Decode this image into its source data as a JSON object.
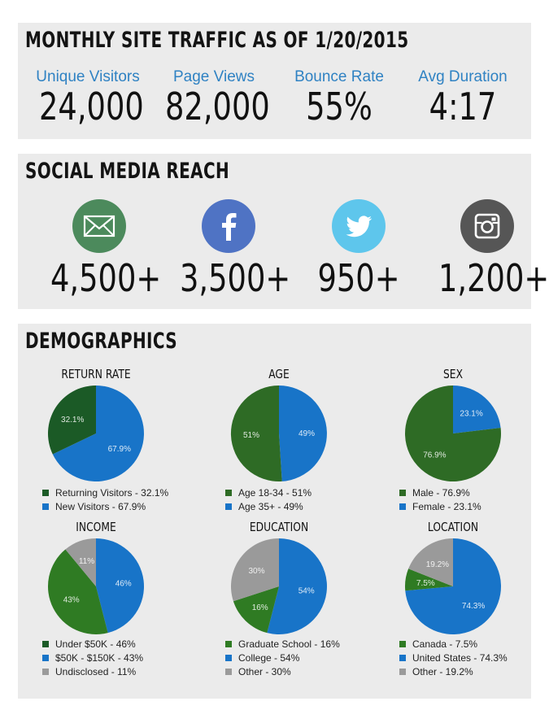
{
  "traffic": {
    "title": "MONTHLY SITE TRAFFIC AS OF 1/20/2015",
    "stats": [
      {
        "label": "Unique Visitors",
        "value": "24,000"
      },
      {
        "label": "Page Views",
        "value": "82,000"
      },
      {
        "label": "Bounce Rate",
        "value": "55%"
      },
      {
        "label": "Avg Duration",
        "value": "4:17"
      }
    ]
  },
  "social": {
    "title": "SOCIAL MEDIA REACH",
    "items": [
      {
        "icon": "envelope-icon",
        "color": "#4c8a5c",
        "count": "4,500+"
      },
      {
        "icon": "facebook-icon",
        "color": "#4f73c4",
        "count": "3,500+"
      },
      {
        "icon": "twitter-icon",
        "color": "#5ec6ec",
        "count": "950+"
      },
      {
        "icon": "instagram-icon",
        "color": "#565656",
        "count": "1,200+"
      }
    ]
  },
  "demographics": {
    "title": "DEMOGRAPHICS"
  },
  "colors": {
    "blue": "#1874c8",
    "light_green": "#2f7b23",
    "dark_green": "#1b5a26",
    "gray": "#9a9a9a"
  },
  "chart_data": [
    {
      "type": "pie",
      "title": "RETURN RATE",
      "slices": [
        {
          "pie_label": "67.9%",
          "value": 67.9,
          "color": "#1874c8",
          "legend": "New Visitors - 67.9%"
        },
        {
          "pie_label": "32.1%",
          "value": 32.1,
          "color": "#1b5a26",
          "legend": "Returning Visitors - 32.1%"
        }
      ],
      "legend_order": [
        1,
        0
      ]
    },
    {
      "type": "pie",
      "title": "AGE",
      "slices": [
        {
          "pie_label": "49%",
          "value": 49,
          "color": "#1874c8",
          "legend": "Age 35+ - 49%"
        },
        {
          "pie_label": "51%",
          "value": 51,
          "color": "#2e6b25",
          "legend": "Age 18-34 - 51%"
        }
      ],
      "legend_order": [
        1,
        0
      ]
    },
    {
      "type": "pie",
      "title": "SEX",
      "slices": [
        {
          "pie_label": "23.1%",
          "value": 23.1,
          "color": "#1874c8",
          "legend": "Female - 23.1%"
        },
        {
          "pie_label": "76.9%",
          "value": 76.9,
          "color": "#2e6b25",
          "legend": "Male - 76.9%"
        }
      ],
      "legend_order": [
        1,
        0
      ]
    },
    {
      "type": "pie",
      "title": "INCOME",
      "slices": [
        {
          "pie_label": "46%",
          "value": 46,
          "color": "#1874c8",
          "legend": "Under $50K - 46%"
        },
        {
          "pie_label": "43%",
          "value": 43,
          "color": "#2f7b23",
          "legend": "$50K - $150K - 43%"
        },
        {
          "pie_label": "11%",
          "value": 11,
          "color": "#9a9a9a",
          "legend": "Undisclosed - 11%"
        }
      ],
      "legend_order": [
        0,
        1,
        2
      ],
      "legend_colors": [
        "#1b5a26",
        "#1874c8",
        "#9a9a9a"
      ]
    },
    {
      "type": "pie",
      "title": "EDUCATION",
      "slices": [
        {
          "pie_label": "54%",
          "value": 54,
          "color": "#1874c8",
          "legend": "College - 54%"
        },
        {
          "pie_label": "16%",
          "value": 16,
          "color": "#2f7b23",
          "legend": "Graduate School - 16%"
        },
        {
          "pie_label": "30%",
          "value": 30,
          "color": "#9a9a9a",
          "legend": "Other - 30%"
        }
      ],
      "legend_order": [
        1,
        0,
        2
      ]
    },
    {
      "type": "pie",
      "title": "LOCATION",
      "slices": [
        {
          "pie_label": "74.3%",
          "value": 74.3,
          "color": "#1874c8",
          "legend": "United States - 74.3%"
        },
        {
          "pie_label": "7.5%",
          "value": 7.5,
          "color": "#2f7b23",
          "legend": "Canada - 7.5%"
        },
        {
          "pie_label": "19.2%",
          "value": 19.2,
          "color": "#9a9a9a",
          "legend": "Other - 19.2%"
        }
      ],
      "legend_order": [
        1,
        0,
        2
      ]
    }
  ]
}
